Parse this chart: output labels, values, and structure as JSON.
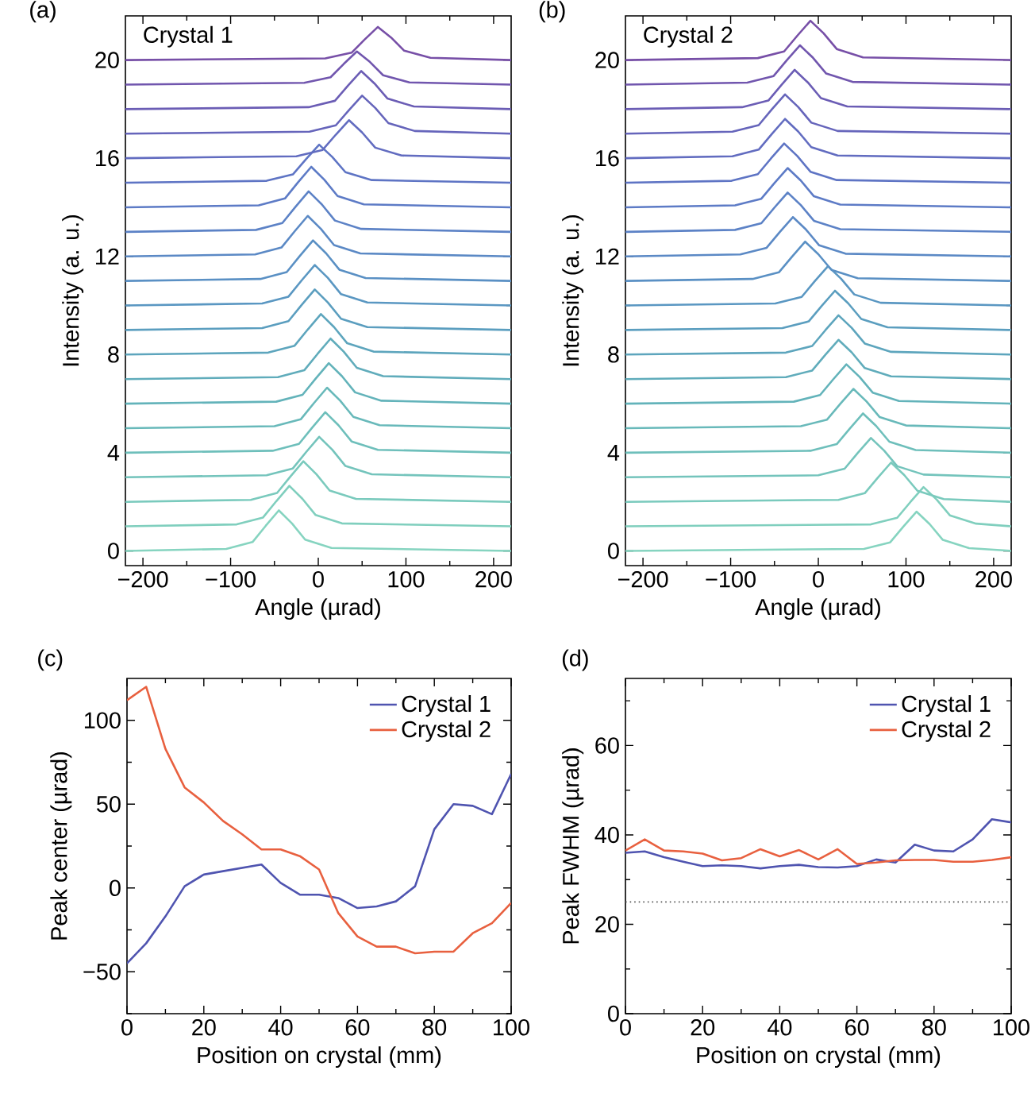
{
  "chart_data": [
    {
      "type": "line",
      "title": "(a)",
      "annotations": [
        "Crystal 1"
      ],
      "xlabel": "Angle (µrad)",
      "ylabel": "Intensity (a. u.)",
      "xlim": [
        -220,
        220
      ],
      "ylim": [
        -0.6,
        21.8
      ],
      "xticks": [
        {
          "value": -200,
          "label": "−200"
        },
        {
          "value": -150,
          "label": null
        },
        {
          "value": -100,
          "label": "−100"
        },
        {
          "value": -50,
          "label": null
        },
        0,
        {
          "value": 50,
          "label": null
        },
        100,
        {
          "value": 150,
          "label": null
        },
        200
      ],
      "yticks": [
        0,
        {
          "value": 2,
          "label": null
        },
        4,
        {
          "value": 6,
          "label": null
        },
        8,
        {
          "value": 10,
          "label": null
        },
        12,
        {
          "value": 14,
          "label": null
        },
        16,
        {
          "value": 18,
          "label": null
        },
        20
      ],
      "series": [
        {
          "color": "#86d4c0",
          "x": [
            -220,
            -105,
            -75,
            -60,
            -45,
            -30,
            -15,
            15,
            220
          ],
          "values": [
            0,
            0.08,
            0.36,
            1.02,
            1.65,
            1.12,
            0.46,
            0.12,
            0
          ]
        },
        {
          "color": "#80cfbe",
          "x": [
            -220,
            -93,
            -63,
            -48,
            -33,
            -18,
            -3,
            27,
            220
          ],
          "values": [
            1,
            1.08,
            1.36,
            2.02,
            2.65,
            2.12,
            1.46,
            1.12,
            1
          ]
        },
        {
          "color": "#7acabd",
          "x": [
            -220,
            -77,
            -47,
            -32,
            -17,
            -2,
            13,
            43,
            220
          ],
          "values": [
            2,
            2.08,
            2.36,
            3.02,
            3.65,
            3.12,
            2.46,
            2.12,
            2
          ]
        },
        {
          "color": "#74c4bc",
          "x": [
            -220,
            -59,
            -29,
            -14,
            1,
            16,
            31,
            61,
            220
          ],
          "values": [
            3,
            3.08,
            3.36,
            4.02,
            4.65,
            4.12,
            3.46,
            3.12,
            3
          ]
        },
        {
          "color": "#6ebfbb",
          "x": [
            -220,
            -52,
            -22,
            -7,
            8,
            23,
            38,
            68,
            220
          ],
          "values": [
            4,
            4.08,
            4.36,
            5.02,
            5.65,
            5.12,
            4.46,
            4.12,
            4
          ]
        },
        {
          "color": "#68b9ba",
          "x": [
            -220,
            -50,
            -20,
            -5,
            10,
            25,
            40,
            70,
            220
          ],
          "values": [
            5,
            5.08,
            5.36,
            6.02,
            6.65,
            6.12,
            5.46,
            5.12,
            5
          ]
        },
        {
          "color": "#63b3ba",
          "x": [
            -220,
            -48,
            -18,
            -3,
            12,
            27,
            42,
            72,
            220
          ],
          "values": [
            6,
            6.08,
            6.36,
            7.02,
            7.65,
            7.12,
            6.46,
            6.12,
            6
          ]
        },
        {
          "color": "#60acbb",
          "x": [
            -220,
            -46,
            -16,
            -1,
            14,
            29,
            44,
            74,
            220
          ],
          "values": [
            7,
            7.08,
            7.36,
            8.02,
            8.65,
            8.12,
            7.46,
            7.12,
            7
          ]
        },
        {
          "color": "#5da5bd",
          "x": [
            -220,
            -57,
            -27,
            -12,
            3,
            18,
            33,
            63,
            220
          ],
          "values": [
            8,
            8.08,
            8.36,
            9.02,
            9.65,
            9.12,
            8.46,
            8.12,
            8
          ]
        },
        {
          "color": "#5b9ebf",
          "x": [
            -220,
            -64,
            -34,
            -19,
            -4,
            11,
            26,
            56,
            220
          ],
          "values": [
            9,
            9.08,
            9.36,
            10.02,
            10.65,
            10.12,
            9.46,
            9.12,
            9
          ]
        },
        {
          "color": "#5a97c2",
          "x": [
            -220,
            -64,
            -34,
            -19,
            -4,
            11,
            26,
            56,
            220
          ],
          "values": [
            10,
            10.08,
            10.36,
            11.02,
            11.65,
            11.12,
            10.46,
            10.12,
            10
          ]
        },
        {
          "color": "#5a90c4",
          "x": [
            -220,
            -66,
            -36,
            -21,
            -6,
            9,
            24,
            54,
            220
          ],
          "values": [
            11,
            11.08,
            11.36,
            12.02,
            12.65,
            12.12,
            11.46,
            11.12,
            11
          ]
        },
        {
          "color": "#5b89c5",
          "x": [
            -220,
            -72,
            -42,
            -27,
            -12,
            3,
            18,
            48,
            220
          ],
          "values": [
            12,
            12.08,
            12.36,
            13.02,
            13.65,
            13.12,
            12.46,
            12.12,
            12
          ]
        },
        {
          "color": "#5c82c6",
          "x": [
            -220,
            -71,
            -41,
            -26,
            -11,
            4,
            19,
            49,
            220
          ],
          "values": [
            13,
            13.08,
            13.36,
            14.02,
            14.65,
            14.12,
            13.46,
            13.12,
            13
          ]
        },
        {
          "color": "#5d7bc6",
          "x": [
            -220,
            -68,
            -38,
            -23,
            -8,
            7,
            22,
            52,
            220
          ],
          "values": [
            14,
            14.08,
            14.36,
            15.02,
            15.65,
            15.12,
            14.46,
            14.12,
            14
          ]
        },
        {
          "color": "#5e74c4",
          "x": [
            -220,
            -59,
            -29,
            -14,
            1,
            16,
            31,
            61,
            220
          ],
          "values": [
            15,
            15.08,
            15.34,
            15.96,
            16.55,
            16.05,
            15.43,
            15.11,
            15
          ]
        },
        {
          "color": "#626cc0",
          "x": [
            -220,
            -25,
            5,
            20,
            35,
            50,
            65,
            95,
            220
          ],
          "values": [
            16,
            16.08,
            16.34,
            16.96,
            17.55,
            17.05,
            16.43,
            16.11,
            16
          ]
        },
        {
          "color": "#6665bb",
          "x": [
            -220,
            -10,
            20,
            35,
            50,
            65,
            80,
            110,
            220
          ],
          "values": [
            17,
            17.08,
            17.34,
            17.96,
            18.55,
            18.05,
            17.43,
            17.11,
            17
          ]
        },
        {
          "color": "#6b5db5",
          "x": [
            -220,
            -11,
            19,
            34,
            49,
            64,
            79,
            109,
            220
          ],
          "values": [
            18,
            18.08,
            18.34,
            18.96,
            19.55,
            19.05,
            18.43,
            18.11,
            18
          ]
        },
        {
          "color": "#7156ae",
          "x": [
            -220,
            -16,
            14,
            29,
            44,
            59,
            74,
            104,
            220
          ],
          "values": [
            19,
            19.07,
            19.3,
            19.84,
            20.35,
            19.92,
            19.38,
            19.09,
            19
          ]
        },
        {
          "color": "#774fa7",
          "x": [
            -220,
            8,
            38,
            53,
            68,
            83,
            98,
            128,
            220
          ],
          "values": [
            20,
            20.07,
            20.3,
            20.84,
            21.35,
            20.92,
            20.38,
            20.09,
            20
          ]
        }
      ]
    },
    {
      "type": "line",
      "title": "(b)",
      "annotations": [
        "Crystal 2"
      ],
      "xlabel": "Angle (µrad)",
      "ylabel": "Intensity (a. u.)",
      "xlim": [
        -220,
        220
      ],
      "ylim": [
        -0.6,
        21.8
      ],
      "xticks": [
        {
          "value": -200,
          "label": "−200"
        },
        {
          "value": -150,
          "label": null
        },
        {
          "value": -100,
          "label": "−100"
        },
        {
          "value": -50,
          "label": null
        },
        0,
        {
          "value": 50,
          "label": null
        },
        100,
        {
          "value": 150,
          "label": null
        },
        200
      ],
      "yticks": [
        0,
        {
          "value": 2,
          "label": null
        },
        4,
        {
          "value": 6,
          "label": null
        },
        8,
        {
          "value": 10,
          "label": null
        },
        12,
        {
          "value": 14,
          "label": null
        },
        16,
        {
          "value": 18,
          "label": null
        },
        20
      ],
      "series": [
        {
          "color": "#86d4c0",
          "x": [
            -220,
            52,
            82,
            97,
            112,
            127,
            142,
            172,
            220
          ],
          "values": [
            0,
            0.08,
            0.35,
            0.99,
            1.6,
            1.09,
            0.45,
            0.11,
            0
          ]
        },
        {
          "color": "#80cfbe",
          "x": [
            -220,
            60,
            90,
            105,
            120,
            135,
            150,
            180,
            220
          ],
          "values": [
            1,
            1.08,
            1.35,
            1.99,
            2.6,
            2.09,
            1.45,
            1.11,
            1
          ]
        },
        {
          "color": "#7acabd",
          "x": [
            -220,
            23,
            53,
            68,
            83,
            98,
            113,
            143,
            220
          ],
          "values": [
            2,
            2.08,
            2.35,
            2.99,
            3.6,
            3.09,
            2.45,
            2.11,
            2
          ]
        },
        {
          "color": "#74c4bc",
          "x": [
            -220,
            0,
            30,
            45,
            60,
            75,
            90,
            120,
            220
          ],
          "values": [
            3,
            3.08,
            3.35,
            3.99,
            4.6,
            4.09,
            3.45,
            3.11,
            3
          ]
        },
        {
          "color": "#6ebfbb",
          "x": [
            -220,
            -9,
            21,
            36,
            51,
            66,
            81,
            111,
            220
          ],
          "values": [
            4,
            4.08,
            4.35,
            4.99,
            5.6,
            5.09,
            4.45,
            4.11,
            4
          ]
        },
        {
          "color": "#68b9ba",
          "x": [
            -220,
            -20,
            10,
            25,
            40,
            55,
            70,
            100,
            220
          ],
          "values": [
            5,
            5.08,
            5.35,
            5.99,
            6.6,
            6.09,
            5.45,
            5.11,
            5
          ]
        },
        {
          "color": "#63b3ba",
          "x": [
            -220,
            -28,
            2,
            17,
            32,
            47,
            62,
            92,
            220
          ],
          "values": [
            6,
            6.08,
            6.35,
            6.99,
            7.6,
            7.09,
            6.45,
            6.11,
            6
          ]
        },
        {
          "color": "#60acbb",
          "x": [
            -220,
            -37,
            -7,
            8,
            23,
            38,
            53,
            83,
            220
          ],
          "values": [
            7,
            7.08,
            7.35,
            7.99,
            8.6,
            8.09,
            7.45,
            7.11,
            7
          ]
        },
        {
          "color": "#5da5bd",
          "x": [
            -220,
            -37,
            -7,
            8,
            23,
            38,
            53,
            83,
            220
          ],
          "values": [
            8,
            8.08,
            8.35,
            8.99,
            9.6,
            9.09,
            8.45,
            8.11,
            8
          ]
        },
        {
          "color": "#5b9ebf",
          "x": [
            -220,
            -41,
            -11,
            4,
            19,
            34,
            49,
            79,
            220
          ],
          "values": [
            9,
            9.08,
            9.35,
            9.99,
            10.6,
            10.09,
            9.45,
            9.11,
            9
          ]
        },
        {
          "color": "#5a97c2",
          "x": [
            -220,
            -49,
            -19,
            -4,
            11,
            26,
            41,
            71,
            220
          ],
          "values": [
            10,
            10.08,
            10.35,
            10.99,
            11.6,
            11.09,
            10.45,
            10.11,
            10
          ]
        },
        {
          "color": "#5a90c4",
          "x": [
            -220,
            -75,
            -45,
            -30,
            -15,
            0,
            15,
            45,
            220
          ],
          "values": [
            11,
            11.08,
            11.35,
            11.99,
            12.6,
            12.09,
            11.45,
            11.11,
            11
          ]
        },
        {
          "color": "#5b89c5",
          "x": [
            -220,
            -89,
            -59,
            -44,
            -29,
            -14,
            1,
            31,
            220
          ],
          "values": [
            12,
            12.08,
            12.35,
            12.99,
            13.6,
            13.09,
            12.45,
            12.11,
            12
          ]
        },
        {
          "color": "#5c82c6",
          "x": [
            -220,
            -95,
            -65,
            -50,
            -35,
            -20,
            -5,
            25,
            220
          ],
          "values": [
            13,
            13.08,
            13.35,
            13.99,
            14.6,
            14.09,
            13.45,
            13.11,
            13
          ]
        },
        {
          "color": "#5d7bc6",
          "x": [
            -220,
            -95,
            -65,
            -50,
            -35,
            -20,
            -5,
            25,
            220
          ],
          "values": [
            14,
            14.08,
            14.35,
            14.99,
            15.6,
            15.09,
            14.45,
            14.11,
            14
          ]
        },
        {
          "color": "#5e74c4",
          "x": [
            -220,
            -99,
            -69,
            -54,
            -39,
            -24,
            -9,
            21,
            220
          ],
          "values": [
            15,
            15.08,
            15.35,
            15.99,
            16.6,
            16.09,
            15.45,
            15.11,
            15
          ]
        },
        {
          "color": "#626cc0",
          "x": [
            -220,
            -98,
            -68,
            -53,
            -38,
            -23,
            -8,
            22,
            220
          ],
          "values": [
            16,
            16.08,
            16.35,
            16.99,
            17.6,
            17.09,
            16.45,
            16.11,
            16
          ]
        },
        {
          "color": "#6665bb",
          "x": [
            -220,
            -98,
            -68,
            -53,
            -38,
            -23,
            -8,
            22,
            220
          ],
          "values": [
            17,
            17.08,
            17.35,
            17.99,
            18.6,
            18.09,
            17.45,
            17.11,
            17
          ]
        },
        {
          "color": "#6b5db5",
          "x": [
            -220,
            -87,
            -57,
            -42,
            -27,
            -12,
            3,
            33,
            220
          ],
          "values": [
            18,
            18.08,
            18.35,
            18.99,
            19.6,
            19.09,
            18.45,
            18.11,
            18
          ]
        },
        {
          "color": "#7156ae",
          "x": [
            -220,
            -81,
            -51,
            -36,
            -21,
            -6,
            9,
            39,
            220
          ],
          "values": [
            19,
            19.08,
            19.35,
            19.99,
            20.6,
            20.09,
            19.45,
            19.11,
            19
          ]
        },
        {
          "color": "#774fa7",
          "x": [
            -220,
            -69,
            -39,
            -24,
            -9,
            6,
            21,
            51,
            220
          ],
          "values": [
            20,
            20.08,
            20.35,
            20.99,
            21.6,
            21.09,
            20.45,
            20.11,
            20
          ]
        }
      ]
    },
    {
      "type": "line",
      "title": "(c)",
      "xlabel": "Position on crystal (mm)",
      "ylabel": "Peak center (µrad)",
      "xlim": [
        0,
        100
      ],
      "ylim": [
        -75,
        125
      ],
      "legend": "top right",
      "xticks": [
        0,
        {
          "value": 10,
          "label": null
        },
        20,
        {
          "value": 30,
          "label": null
        },
        40,
        {
          "value": 50,
          "label": null
        },
        60,
        {
          "value": 70,
          "label": null
        },
        80,
        {
          "value": 90,
          "label": null
        },
        100
      ],
      "yticks": [
        {
          "value": -75,
          "label": null
        },
        {
          "value": -50,
          "label": "−50"
        },
        {
          "value": -25,
          "label": null
        },
        0,
        {
          "value": 25,
          "label": null
        },
        50,
        {
          "value": 75,
          "label": null
        },
        100
      ],
      "x": [
        0,
        5,
        10,
        15,
        20,
        25,
        30,
        35,
        40,
        45,
        50,
        55,
        60,
        65,
        70,
        75,
        80,
        85,
        90,
        95,
        100
      ],
      "series": [
        {
          "name": "Crystal 1",
          "color": "#4f54b0",
          "values": [
            -45,
            -33,
            -17,
            1,
            8,
            10,
            12,
            14,
            3,
            -4,
            -4,
            -6,
            -12,
            -11,
            -8,
            1,
            35,
            50,
            49,
            44,
            68
          ]
        },
        {
          "name": "Crystal 2",
          "color": "#e8603f",
          "values": [
            112,
            120,
            83,
            60,
            51,
            40,
            32,
            23,
            23,
            19,
            11,
            -15,
            -29,
            -35,
            -35,
            -39,
            -38,
            -38,
            -27,
            -21,
            -9
          ]
        }
      ]
    },
    {
      "type": "line",
      "title": "(d)",
      "xlabel": "Position on crystal (mm)",
      "ylabel": "Peak FWHM (µrad)",
      "xlim": [
        0,
        100
      ],
      "ylim": [
        0,
        75
      ],
      "legend": "top right",
      "xticks": [
        0,
        {
          "value": 10,
          "label": null
        },
        20,
        {
          "value": 30,
          "label": null
        },
        40,
        {
          "value": 50,
          "label": null
        },
        60,
        {
          "value": 70,
          "label": null
        },
        80,
        {
          "value": 90,
          "label": null
        },
        100
      ],
      "yticks": [
        0,
        {
          "value": 10,
          "label": null
        },
        20,
        {
          "value": 30,
          "label": null
        },
        40,
        {
          "value": 50,
          "label": null
        },
        60,
        {
          "value": 70,
          "label": null
        }
      ],
      "x": [
        0,
        5,
        10,
        15,
        20,
        25,
        30,
        35,
        40,
        45,
        50,
        55,
        60,
        65,
        70,
        75,
        80,
        85,
        90,
        95,
        100
      ],
      "ref_lines": [
        {
          "axis": "y",
          "value": 25,
          "color": "#555555",
          "line_style": "dotted"
        }
      ],
      "series": [
        {
          "name": "Crystal 1",
          "color": "#4f54b0",
          "values": [
            36,
            36.3,
            35,
            34,
            33,
            33.2,
            33,
            32.5,
            33,
            33.3,
            32.8,
            32.7,
            33,
            34.5,
            33.8,
            37.8,
            36.5,
            36.3,
            39,
            43.5,
            42.8
          ]
        },
        {
          "name": "Crystal 2",
          "color": "#e8603f",
          "values": [
            36.5,
            39,
            36.5,
            36.3,
            35.8,
            34.3,
            34.8,
            36.8,
            35.2,
            36.6,
            34.5,
            36.8,
            33.5,
            33.8,
            34.3,
            34.4,
            34.4,
            34,
            34,
            34.4,
            35
          ]
        }
      ]
    }
  ]
}
